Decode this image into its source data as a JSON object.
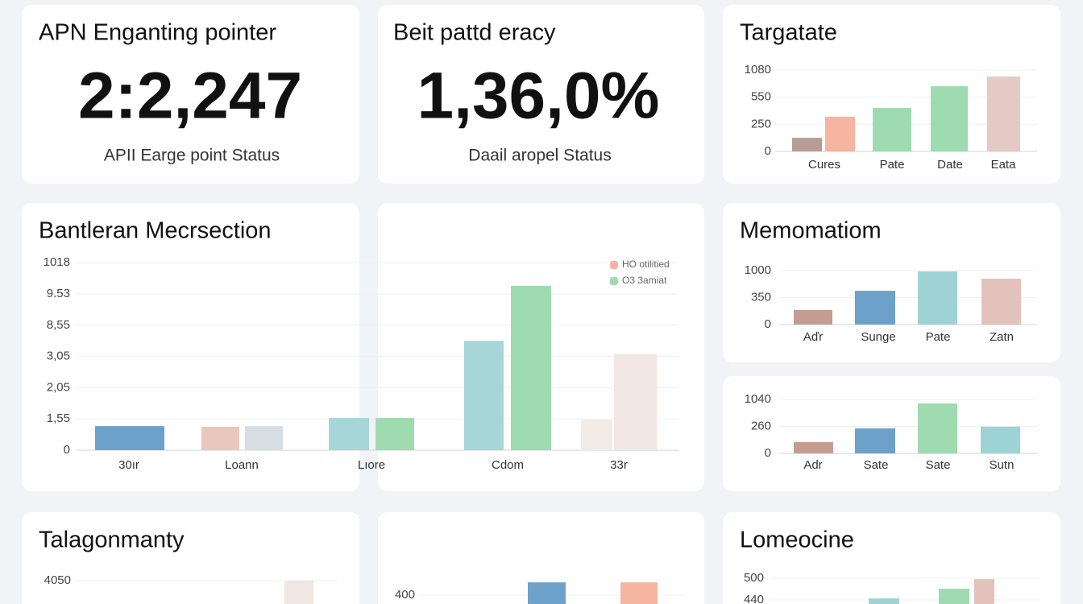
{
  "kpis": [
    {
      "title": "APN Enganting pointer",
      "value": "2:2,247",
      "subtitle": "APII Earge point Status"
    },
    {
      "title": "Beit pattd eracy",
      "value": "1,36,0%",
      "subtitle": "Daail aropel Status"
    }
  ],
  "charts": [
    {
      "title": "Targatate",
      "ytick_labels": [
        "0",
        "250",
        "550",
        "1080"
      ],
      "yticks": [
        0,
        1,
        2,
        3
      ],
      "groups": [
        {
          "label": "Cures",
          "bars": [
            {
              "color": "#b89c96",
              "value": 0.5
            },
            {
              "color": "#f5b5a0",
              "value": 1.28
            }
          ]
        },
        {
          "label": "Pate",
          "bars": [
            {
              "color": "#9fdbb0",
              "value": 1.6
            }
          ]
        },
        {
          "label": "Date",
          "bars": [
            {
              "color": "#9fdbb0",
              "value": 2.4
            }
          ]
        },
        {
          "label": "Eata",
          "bars": [
            {
              "color": "#e3cac5",
              "value": 2.76
            }
          ]
        }
      ]
    },
    {
      "title": "Bantleran Mecrsection",
      "ytick_labels": [
        "0",
        "1,55",
        "2,05",
        "3,05",
        "8,55",
        "9.53",
        "1018"
      ],
      "yticks": [
        0,
        1,
        2,
        3,
        4,
        5,
        6
      ],
      "legend": [
        {
          "name": "HO otilitied",
          "color": "#f5b5a0"
        },
        {
          "name": "O3 3amiat",
          "color": "#9fdbb0"
        }
      ],
      "groups": [
        {
          "label": "30ır",
          "bars": [
            {
              "color": "#6ea1c9",
              "value": 0.77
            }
          ]
        },
        {
          "label": "Loann",
          "bars": [
            {
              "color": "#e8c7bd",
              "value": 0.75
            },
            {
              "color": "#d6dee3",
              "value": 0.77
            }
          ]
        },
        {
          "label": "Lıore",
          "bars": [
            {
              "color": "#a6d6d8",
              "value": 1.03
            },
            {
              "color": "#9fdbb0",
              "value": 1.03
            }
          ]
        },
        {
          "label": "Cdom",
          "bars": [
            {
              "color": "#a6d6d8",
              "value": 3.5
            },
            {
              "color": "#9fdbb0",
              "value": 5.26
            }
          ]
        },
        {
          "label": "33r",
          "bars": [
            {
              "color": "#f3ebe6",
              "value": 0.98
            },
            {
              "color": "#f1e6e2",
              "value": 3.08
            }
          ]
        }
      ]
    },
    {
      "title": "Memomatiom",
      "ytick_labels": [
        "0",
        "350",
        "1000"
      ],
      "yticks": [
        0,
        1,
        2
      ],
      "groups": [
        {
          "label": "Aďr",
          "bars": [
            {
              "color": "#c59c92",
              "value": 0.54
            }
          ]
        },
        {
          "label": "Sunge",
          "bars": [
            {
              "color": "#6ea1c9",
              "value": 1.25
            }
          ]
        },
        {
          "label": "Pate",
          "bars": [
            {
              "color": "#9dd3d5",
              "value": 1.97
            }
          ]
        },
        {
          "label": "Zatn",
          "bars": [
            {
              "color": "#e3c2bb",
              "value": 1.7
            }
          ]
        }
      ]
    },
    {
      "ytick_labels": [
        "0",
        "260",
        "1040"
      ],
      "yticks": [
        0,
        1,
        2
      ],
      "groups": [
        {
          "label": "Adr",
          "bars": [
            {
              "color": "#c59c92",
              "value": 0.42
            }
          ]
        },
        {
          "label": "Sate",
          "bars": [
            {
              "color": "#6ea1c9",
              "value": 0.93
            }
          ]
        },
        {
          "label": "Sate",
          "bars": [
            {
              "color": "#9fdbb0",
              "value": 1.85
            }
          ]
        },
        {
          "label": "Sutn",
          "bars": [
            {
              "color": "#9dd3d5",
              "value": 0.99
            }
          ]
        }
      ]
    },
    {
      "title": "Talagonmanty",
      "ytick_labels": [
        "4050"
      ],
      "yticks": [
        1
      ],
      "groups": [
        {
          "bars": [
            {
              "color": "#f1e6e2",
              "value": 1.0
            }
          ]
        }
      ]
    },
    {
      "ytick_labels": [
        "400"
      ],
      "yticks": [
        1
      ],
      "groups": [
        {
          "bars": [
            {
              "color": "#6ea1c9",
              "value": 1.44
            }
          ]
        },
        {
          "bars": [
            {
              "color": "#f5b5a0",
              "value": 1.44
            }
          ]
        }
      ]
    },
    {
      "title": "Lomeocine",
      "ytick_labels": [
        "440",
        "500"
      ],
      "yticks": [
        1,
        2
      ],
      "groups": [
        {
          "bars": [
            {
              "color": "#9dd3d5",
              "value": 1.07
            }
          ]
        },
        {
          "bars": [
            {
              "color": "#9fdbb0",
              "value": 1.52
            }
          ]
        },
        {
          "bars": [
            {
              "color": "#e3c2bb",
              "value": 1.96
            }
          ]
        }
      ]
    }
  ]
}
